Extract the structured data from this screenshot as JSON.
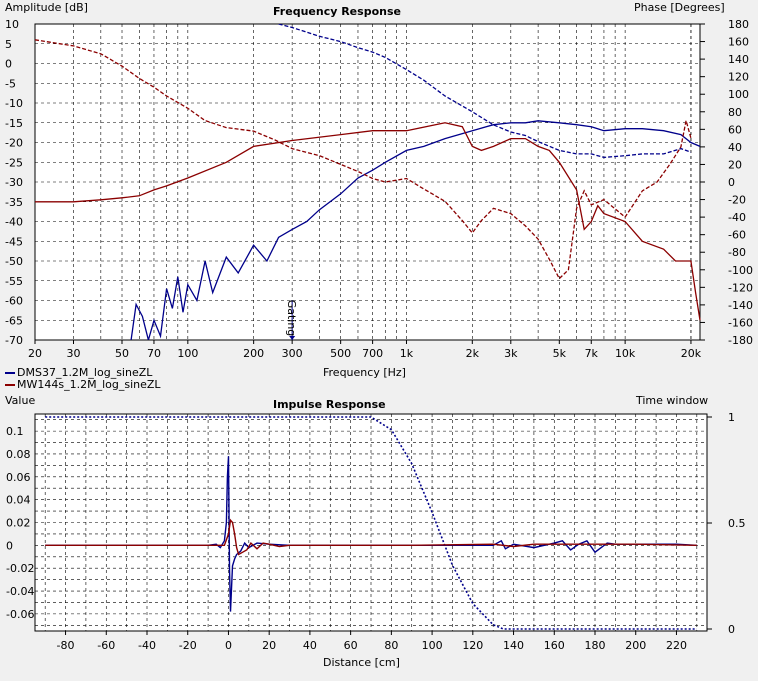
{
  "chart_data": [
    {
      "type": "line",
      "title": "Frequency Response",
      "xlabel": "Frequency [Hz]",
      "ylabel_left": "Amplitude [dB]",
      "ylabel_right": "Phase [Degrees]",
      "x_scale": "log",
      "xlim": [
        20,
        22000
      ],
      "ylim_left": [
        -70,
        10
      ],
      "ylim_right": [
        -180,
        180
      ],
      "x_ticks": [
        {
          "v": 20,
          "label": "20"
        },
        {
          "v": 30,
          "label": "30"
        },
        {
          "v": 50,
          "label": "50"
        },
        {
          "v": 70,
          "label": "70"
        },
        {
          "v": 100,
          "label": "100"
        },
        {
          "v": 200,
          "label": "200"
        },
        {
          "v": 300,
          "label": "300"
        },
        {
          "v": 500,
          "label": "500"
        },
        {
          "v": 700,
          "label": "700"
        },
        {
          "v": 1000,
          "label": "1k"
        },
        {
          "v": 2000,
          "label": "2k"
        },
        {
          "v": 3000,
          "label": "3k"
        },
        {
          "v": 5000,
          "label": "5k"
        },
        {
          "v": 7000,
          "label": "7k"
        },
        {
          "v": 10000,
          "label": "10k"
        },
        {
          "v": 20000,
          "label": "20k"
        }
      ],
      "y_ticks_left": [
        "10",
        "5",
        "0",
        "-5",
        "-10",
        "-15",
        "-20",
        "-25",
        "-30",
        "-35",
        "-40",
        "-45",
        "-50",
        "-55",
        "-60",
        "-65",
        "-70"
      ],
      "y_ticks_right": [
        "180",
        "160",
        "140",
        "120",
        "100",
        "80",
        "60",
        "40",
        "20",
        "0",
        "-20",
        "-40",
        "-60",
        "-80",
        "-100",
        "-120",
        "-140",
        "-160",
        "-180"
      ],
      "grid": true,
      "legend_placement": "bottom-left",
      "marker": {
        "label": "Gating",
        "x": 300
      },
      "series": [
        {
          "name": "DMS37_1.2M_log_sineZL",
          "color": "#00008b",
          "kind": "amplitude",
          "x": [
            55,
            58,
            62,
            66,
            70,
            75,
            80,
            85,
            90,
            95,
            100,
            110,
            120,
            130,
            150,
            170,
            200,
            230,
            260,
            300,
            350,
            400,
            500,
            600,
            700,
            800,
            1000,
            1200,
            1500,
            2000,
            2500,
            3000,
            3500,
            4000,
            5000,
            6000,
            7000,
            8000,
            10000,
            12000,
            15000,
            18000,
            20000,
            22000
          ],
          "y": [
            -70,
            -61,
            -64,
            -70,
            -65,
            -69,
            -57,
            -62,
            -54,
            -63,
            -56,
            -60,
            -50,
            -58,
            -49,
            -53,
            -46,
            -50,
            -44,
            -42,
            -40,
            -37,
            -33,
            -29,
            -27,
            -25,
            -22,
            -21,
            -19,
            -17,
            -15.5,
            -15,
            -15,
            -14.5,
            -15,
            -15.5,
            -16,
            -17,
            -16.5,
            -16.5,
            -17,
            -18,
            -20,
            -21
          ]
        },
        {
          "name": "DMS37_1.2M_log_sineZL phase",
          "color": "#00008b",
          "kind": "phase",
          "x": [
            260,
            300,
            400,
            500,
            600,
            700,
            800,
            1000,
            1200,
            1500,
            2000,
            2500,
            3000,
            3500,
            4000,
            5000,
            6000,
            7000,
            8000,
            10000,
            12000,
            15000,
            18000,
            20000
          ],
          "y": [
            180,
            176,
            166,
            160,
            153,
            148,
            142,
            128,
            116,
            98,
            80,
            65,
            57,
            53,
            46,
            36,
            32,
            32,
            28,
            30,
            32,
            32,
            38,
            34
          ]
        },
        {
          "name": "MW144s_1.2M_log_sineZL",
          "color": "#8b0000",
          "kind": "amplitude",
          "x": [
            20,
            30,
            40,
            50,
            60,
            70,
            80,
            100,
            150,
            200,
            300,
            500,
            700,
            1000,
            1500,
            1800,
            2000,
            2200,
            2500,
            3000,
            3500,
            4000,
            4500,
            5000,
            6000,
            6500,
            7000,
            7500,
            8000,
            10000,
            12000,
            15000,
            17000,
            20000,
            21000,
            22000
          ],
          "y": [
            -35,
            -35,
            -34.5,
            -34,
            -33.5,
            -32,
            -31,
            -29,
            -25,
            -21,
            -19.5,
            -18,
            -17,
            -17,
            -15,
            -16,
            -21,
            -22,
            -21,
            -19,
            -19,
            -21,
            -22,
            -25,
            -32,
            -42,
            -40,
            -36,
            -38,
            -40,
            -45,
            -47,
            -50,
            -50,
            -58,
            -65
          ]
        },
        {
          "name": "MW144s_1.2M_log_sineZL phase",
          "color": "#8b0000",
          "kind": "phase",
          "x": [
            20,
            30,
            40,
            50,
            60,
            70,
            80,
            100,
            120,
            150,
            200,
            250,
            300,
            400,
            500,
            600,
            700,
            800,
            1000,
            1200,
            1500,
            1800,
            2000,
            2200,
            2500,
            3000,
            3500,
            4000,
            4500,
            5000,
            5500,
            6000,
            6500,
            7000,
            8000,
            10000,
            12000,
            14000,
            16000,
            18000,
            19000,
            20000
          ],
          "y": [
            162,
            155,
            146,
            132,
            118,
            108,
            98,
            84,
            70,
            62,
            58,
            48,
            38,
            30,
            20,
            12,
            4,
            0,
            4,
            -8,
            -22,
            -44,
            -58,
            -44,
            -30,
            -36,
            -50,
            -65,
            -88,
            -110,
            -100,
            -30,
            -10,
            -26,
            -20,
            -40,
            -10,
            0,
            20,
            40,
            70,
            50
          ]
        }
      ]
    },
    {
      "type": "line",
      "title": "Impulse Response",
      "xlabel": "Distance [cm]",
      "ylabel_left": "Value",
      "ylabel_right": "Time window",
      "xlim": [
        -95,
        235
      ],
      "ylim_left": [
        -0.075,
        0.115
      ],
      "ylim_right": [
        0,
        1
      ],
      "x_ticks": [
        "-80",
        "-60",
        "-40",
        "-20",
        "0",
        "20",
        "40",
        "60",
        "80",
        "100",
        "120",
        "140",
        "160",
        "180",
        "200",
        "220"
      ],
      "y_ticks_left": [
        "0.1",
        "0.08",
        "0.06",
        "0.04",
        "0.02",
        "0",
        "-0.02",
        "-0.04",
        "-0.06"
      ],
      "y_ticks_right": [
        "1",
        "0.5",
        "0"
      ],
      "grid": true,
      "series": [
        {
          "name": "Time window",
          "color": "#00008b",
          "style": "dotted",
          "axis": "right",
          "x": [
            -90,
            70,
            80,
            90,
            100,
            110,
            120,
            130,
            135,
            230
          ],
          "y": [
            1,
            1,
            0.94,
            0.78,
            0.55,
            0.3,
            0.12,
            0.02,
            0,
            0
          ]
        },
        {
          "name": "DMS37_1.2M_log_sineZL impulse",
          "color": "#00008b",
          "x": [
            -90,
            -10,
            -6,
            -4,
            -2,
            -1,
            -0.5,
            0,
            0.5,
            1,
            2,
            3,
            4,
            6,
            8,
            10,
            14,
            20,
            30,
            60,
            90,
            130,
            134,
            136,
            140,
            150,
            160,
            164,
            168,
            172,
            176,
            180,
            186,
            190,
            200,
            210,
            220,
            230
          ],
          "y": [
            0,
            0,
            0.001,
            -0.002,
            0.004,
            0.02,
            0.06,
            0.078,
            -0.02,
            -0.058,
            -0.018,
            -0.012,
            -0.008,
            -0.005,
            0.002,
            -0.002,
            0.002,
            0.001,
            0,
            0,
            0,
            0,
            0.004,
            -0.003,
            0.001,
            -0.002,
            0.002,
            0.004,
            -0.004,
            0.001,
            0.004,
            -0.006,
            0.002,
            0.001,
            0.001,
            0.001,
            0.001,
            0
          ]
        },
        {
          "name": "MW144s_1.2M_log_sineZL impulse",
          "color": "#8b0000",
          "x": [
            -90,
            -2,
            0,
            1,
            2,
            3,
            4,
            5,
            7,
            9,
            11,
            14,
            17,
            20,
            25,
            30,
            40,
            60,
            90,
            130,
            140,
            150,
            160,
            180,
            200,
            230
          ],
          "y": [
            0,
            0,
            0.01,
            0.022,
            0.02,
            0.01,
            -0.002,
            -0.008,
            -0.006,
            -0.004,
            0.002,
            -0.003,
            0.002,
            0.001,
            -0.001,
            0,
            0,
            0,
            0,
            0.001,
            -0.001,
            0.001,
            0.001,
            0.001,
            0.001,
            0
          ]
        }
      ]
    }
  ],
  "legend": [
    {
      "label": "DMS37_1.2M_log_sineZL",
      "color": "#00008b"
    },
    {
      "label": "MW144s_1.2M_log_sineZL",
      "color": "#8b0000"
    }
  ]
}
